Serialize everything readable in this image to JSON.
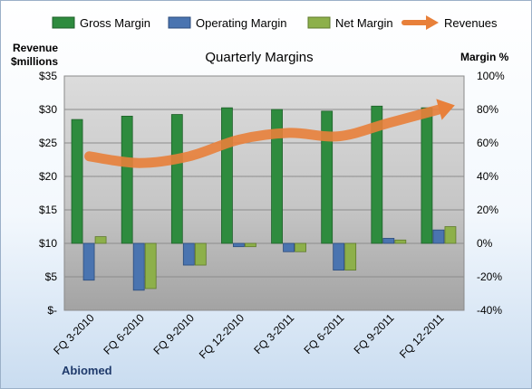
{
  "legend": {
    "gross": "Gross Margin",
    "operating": "Operating Margin",
    "net": "Net Margin",
    "revenues": "Revenues"
  },
  "left_axis_title": [
    "Revenue",
    "$millions"
  ],
  "right_axis_title": "Margin %",
  "footer": "Abiomed",
  "colors": {
    "gross": "#2e8b3e",
    "operating": "#4a74b0",
    "net": "#8db04a",
    "revenues": "#e8803a"
  },
  "chart_data": {
    "type": "bar",
    "title": "Quarterly Margins",
    "categories": [
      "FQ 3-2010",
      "FQ 6-2010",
      "FQ 9-2010",
      "FQ 12-2010",
      "FQ 3-2011",
      "FQ 6-2011",
      "FQ 9-2011",
      "FQ 12-2011"
    ],
    "series": [
      {
        "name": "Gross Margin",
        "axis": "right",
        "values": [
          74,
          76,
          77,
          81,
          80,
          79,
          82,
          81
        ]
      },
      {
        "name": "Operating Margin",
        "axis": "right",
        "values": [
          -22,
          -28,
          -13,
          -2,
          -5,
          -16,
          3,
          8
        ]
      },
      {
        "name": "Net Margin",
        "axis": "right",
        "values": [
          4,
          -27,
          -13,
          -2,
          -5,
          -16,
          2,
          10
        ]
      },
      {
        "name": "Revenues",
        "axis": "left",
        "type": "line",
        "values": [
          23,
          22,
          23,
          25.5,
          26.5,
          26,
          28,
          30
        ]
      }
    ],
    "left_axis": {
      "ylim": [
        0,
        35
      ],
      "ticks": [
        "$-",
        "$5",
        "$10",
        "$15",
        "$20",
        "$25",
        "$30",
        "$35"
      ]
    },
    "right_axis": {
      "ylim": [
        -40,
        100
      ],
      "ticks": [
        "-40%",
        "-20%",
        "0%",
        "20%",
        "40%",
        "60%",
        "80%",
        "100%"
      ]
    },
    "grid": true,
    "legend_position": "top"
  }
}
